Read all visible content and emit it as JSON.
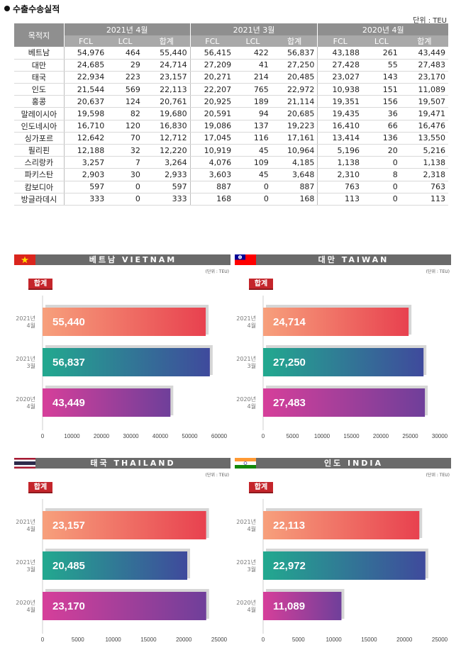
{
  "header": {
    "title": "수출수송실적",
    "unit": "단위 : TEU"
  },
  "table": {
    "dest_header": "목적지",
    "groups": [
      "2021년 4월",
      "2021년 3월",
      "2020년 4월"
    ],
    "subheaders": [
      "FCL",
      "LCL",
      "합계"
    ],
    "rows": [
      {
        "dest": "베트남",
        "values": [
          "54,976",
          "464",
          "55,440",
          "56,415",
          "422",
          "56,837",
          "43,188",
          "261",
          "43,449"
        ]
      },
      {
        "dest": "대만",
        "values": [
          "24,685",
          "29",
          "24,714",
          "27,209",
          "41",
          "27,250",
          "27,428",
          "55",
          "27,483"
        ]
      },
      {
        "dest": "태국",
        "values": [
          "22,934",
          "223",
          "23,157",
          "20,271",
          "214",
          "20,485",
          "23,027",
          "143",
          "23,170"
        ]
      },
      {
        "dest": "인도",
        "values": [
          "21,544",
          "569",
          "22,113",
          "22,207",
          "765",
          "22,972",
          "10,938",
          "151",
          "11,089"
        ]
      },
      {
        "dest": "홍콩",
        "values": [
          "20,637",
          "124",
          "20,761",
          "20,925",
          "189",
          "21,114",
          "19,351",
          "156",
          "19,507"
        ]
      },
      {
        "dest": "말레이시아",
        "values": [
          "19,598",
          "82",
          "19,680",
          "20,591",
          "94",
          "20,685",
          "19,435",
          "36",
          "19,471"
        ]
      },
      {
        "dest": "인도네시아",
        "values": [
          "16,710",
          "120",
          "16,830",
          "19,086",
          "137",
          "19,223",
          "16,410",
          "66",
          "16,476"
        ]
      },
      {
        "dest": "싱가포르",
        "values": [
          "12,642",
          "70",
          "12,712",
          "17,045",
          "116",
          "17,161",
          "13,414",
          "136",
          "13,550"
        ]
      },
      {
        "dest": "필리핀",
        "values": [
          "12,188",
          "32",
          "12,220",
          "10,919",
          "45",
          "10,964",
          "5,196",
          "20",
          "5,216"
        ]
      },
      {
        "dest": "스리랑카",
        "values": [
          "3,257",
          "7",
          "3,264",
          "4,076",
          "109",
          "4,185",
          "1,138",
          "0",
          "1,138"
        ]
      },
      {
        "dest": "파키스탄",
        "values": [
          "2,903",
          "30",
          "2,933",
          "3,603",
          "45",
          "3,648",
          "2,310",
          "8",
          "2,318"
        ]
      },
      {
        "dest": "캄보디아",
        "values": [
          "597",
          "0",
          "597",
          "887",
          "0",
          "887",
          "763",
          "0",
          "763"
        ]
      },
      {
        "dest": "방글라데시",
        "values": [
          "333",
          "0",
          "333",
          "168",
          "0",
          "168",
          "113",
          "0",
          "113"
        ]
      }
    ]
  },
  "colors": {
    "header_gray": "#8f8f8f",
    "panel_header": "#6a6a6a",
    "badge_red": "#c4252b",
    "bar_1_start": "#f7a07c",
    "bar_1_end": "#e8414f",
    "bar_2_start": "#22a98f",
    "bar_2_end": "#3f4a9c",
    "bar_3_start": "#d63f9a",
    "bar_3_end": "#6f3f9a"
  },
  "chart_data": [
    {
      "type": "bar",
      "orientation": "horizontal",
      "title": "베트남 VIETNAM",
      "flag": "vietnam-flag",
      "unit": "(단위 : TEU)",
      "badge": "합계",
      "categories": [
        [
          "2021년",
          "4월"
        ],
        [
          "2021년",
          "3월"
        ],
        [
          "2020년",
          "4월"
        ]
      ],
      "values": [
        55440,
        56837,
        43449
      ],
      "value_labels": [
        "55,440",
        "56,837",
        "43,449"
      ],
      "xlim": [
        0,
        60000
      ],
      "xticks": [
        0,
        10000,
        20000,
        30000,
        40000,
        50000,
        60000
      ]
    },
    {
      "type": "bar",
      "orientation": "horizontal",
      "title": "대만 TAIWAN",
      "flag": "taiwan-flag",
      "unit": "(단위 : TEU)",
      "badge": "합계",
      "categories": [
        [
          "2021년",
          "4월"
        ],
        [
          "2021년",
          "3월"
        ],
        [
          "2020년",
          "4월"
        ]
      ],
      "values": [
        24714,
        27250,
        27483
      ],
      "value_labels": [
        "24,714",
        "27,250",
        "27,483"
      ],
      "xlim": [
        0,
        30000
      ],
      "xticks": [
        0,
        5000,
        10000,
        15000,
        20000,
        25000,
        30000
      ]
    },
    {
      "type": "bar",
      "orientation": "horizontal",
      "title": "태국 THAILAND",
      "flag": "thailand-flag",
      "unit": "(단위 : TEU)",
      "badge": "합계",
      "categories": [
        [
          "2021년",
          "4월"
        ],
        [
          "2021년",
          "3월"
        ],
        [
          "2020년",
          "4월"
        ]
      ],
      "values": [
        23157,
        20485,
        23170
      ],
      "value_labels": [
        "23,157",
        "20,485",
        "23,170"
      ],
      "xlim": [
        0,
        25000
      ],
      "xticks": [
        0,
        5000,
        10000,
        15000,
        20000,
        25000
      ]
    },
    {
      "type": "bar",
      "orientation": "horizontal",
      "title": "인도 INDIA",
      "flag": "india-flag",
      "unit": "(단위 : TEU)",
      "badge": "합계",
      "categories": [
        [
          "2021년",
          "4월"
        ],
        [
          "2021년",
          "3월"
        ],
        [
          "2020년",
          "4월"
        ]
      ],
      "values": [
        22113,
        22972,
        11089
      ],
      "value_labels": [
        "22,113",
        "22,972",
        "11,089"
      ],
      "xlim": [
        0,
        25000
      ],
      "xticks": [
        0,
        5000,
        10000,
        15000,
        20000,
        25000
      ]
    }
  ]
}
